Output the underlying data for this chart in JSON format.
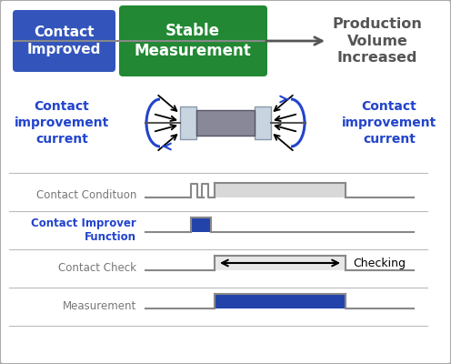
{
  "bg_color": "#f0f0f0",
  "border_color": "#aaaaaa",
  "box1_color": "#3355bb",
  "box1_text": "Contact\nImproved",
  "box2_color": "#228833",
  "box2_text": "Stable\nMeasurement",
  "arrow_color": "#555555",
  "prod_text": "Production\nVolume\nIncreased",
  "prod_color": "#555555",
  "blue_text_color": "#2244cc",
  "left_label": "Contact\nimprovement\ncurrent",
  "right_label": "Contact\nimprovement\ncurrent",
  "resistor_body_color": "#888899",
  "resistor_cap_color": "#c8d4e0",
  "timeline_labels": [
    "Contact Condituon",
    "Contact Improver\nFunction",
    "Contact Check",
    "Measurement"
  ],
  "timeline_label_colors": [
    "#777777",
    "#2244cc",
    "#777777",
    "#777777"
  ],
  "blue_bar_color": "#2244aa",
  "light_bar_color": "#cccccc",
  "checking_text": "Checking"
}
